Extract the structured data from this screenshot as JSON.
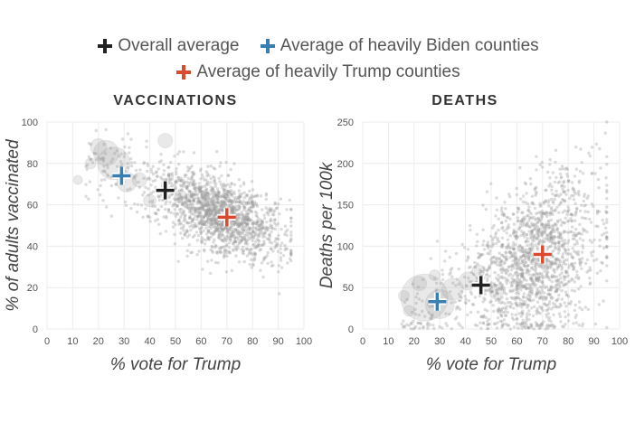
{
  "legend": {
    "overall": "Overall average",
    "biden": "Average of heavily Biden counties",
    "trump": "Average of heavily Trump counties"
  },
  "colors": {
    "overall": "#222222",
    "biden": "#3a7fb2",
    "trump": "#d94a2f",
    "points": "#9a9a9a"
  },
  "chart_data": [
    {
      "type": "scatter",
      "title": "VACCINATIONS",
      "xlabel": "% vote for Trump",
      "ylabel": "% of adults vaccinated",
      "xlim": [
        0,
        100
      ],
      "ylim": [
        0,
        100
      ],
      "xticks": [
        0,
        10,
        20,
        30,
        40,
        50,
        60,
        70,
        80,
        90,
        100
      ],
      "yticks": [
        0,
        20,
        40,
        60,
        80,
        100
      ],
      "grid": true,
      "markers": [
        {
          "key": "overall",
          "x": 46,
          "y": 67
        },
        {
          "key": "biden",
          "x": 29,
          "y": 74
        },
        {
          "key": "trump",
          "x": 70,
          "y": 54
        }
      ]
    },
    {
      "type": "scatter",
      "title": "DEATHS",
      "xlabel": "% vote for Trump",
      "ylabel": "Deaths per 100k",
      "xlim": [
        0,
        100
      ],
      "ylim": [
        0,
        250
      ],
      "xticks": [
        0,
        10,
        20,
        30,
        40,
        50,
        60,
        70,
        80,
        90,
        100
      ],
      "yticks": [
        0,
        50,
        100,
        150,
        200,
        250
      ],
      "grid": true,
      "markers": [
        {
          "key": "overall",
          "x": 46,
          "y": 53
        },
        {
          "key": "biden",
          "x": 29,
          "y": 33
        },
        {
          "key": "trump",
          "x": 70,
          "y": 90
        }
      ]
    }
  ]
}
